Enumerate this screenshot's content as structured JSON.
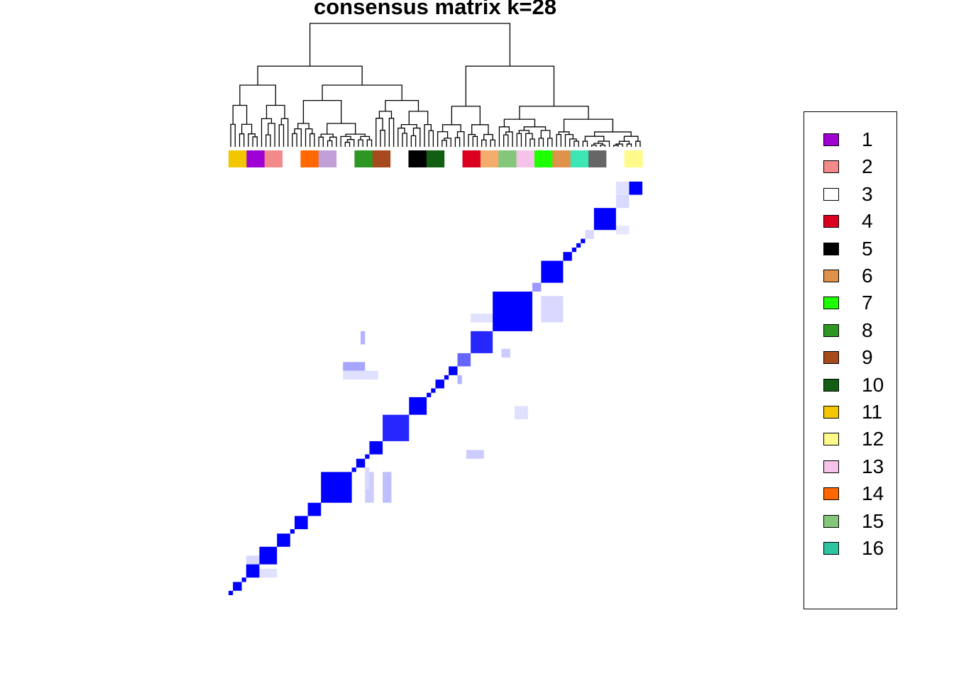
{
  "chart_data": {
    "type": "heatmap",
    "title": "consensus matrix k=28",
    "colorscale": [
      "#ffffff",
      "#0000ff"
    ],
    "value_range": [
      0,
      1
    ],
    "samples_per_block": "mixed",
    "clusters_in_column_order": [
      11,
      1,
      2,
      0,
      14,
      18,
      0,
      8,
      9,
      0,
      5,
      10,
      0,
      4,
      19,
      15,
      13,
      7,
      6,
      20,
      23,
      0,
      12
    ],
    "diagonal_blocks_bottom_left_to_top_right": [
      {
        "span": [
          0,
          1
        ],
        "value": 1.0
      },
      {
        "span": [
          1,
          3
        ],
        "value": 1.0
      },
      {
        "span": [
          3,
          4
        ],
        "value": 1.0
      },
      {
        "span": [
          4,
          7
        ],
        "value": 1.0
      },
      {
        "span": [
          7,
          11
        ],
        "value": 1.0
      },
      {
        "span": [
          11,
          14
        ],
        "value": 1.0
      },
      {
        "span": [
          14,
          15
        ],
        "value": 1.0
      },
      {
        "span": [
          15,
          18
        ],
        "value": 1.0
      },
      {
        "span": [
          18,
          21
        ],
        "value": 1.0
      },
      {
        "span": [
          21,
          28
        ],
        "value": 1.0
      },
      {
        "span": [
          28,
          29
        ],
        "value": 1.0
      },
      {
        "span": [
          29,
          31
        ],
        "value": 1.0
      },
      {
        "span": [
          31,
          32
        ],
        "value": 1.0
      },
      {
        "span": [
          32,
          35
        ],
        "value": 1.0
      },
      {
        "span": [
          35,
          41
        ],
        "value": 0.85
      },
      {
        "span": [
          41,
          45
        ],
        "value": 1.0
      },
      {
        "span": [
          45,
          46
        ],
        "value": 1.0
      },
      {
        "span": [
          46,
          47
        ],
        "value": 1.0
      },
      {
        "span": [
          47,
          49
        ],
        "value": 1.0
      },
      {
        "span": [
          49,
          50
        ],
        "value": 1.0
      },
      {
        "span": [
          50,
          52
        ],
        "value": 1.0
      },
      {
        "span": [
          52,
          55
        ],
        "value": 0.6
      },
      {
        "span": [
          55,
          60
        ],
        "value": 0.85
      },
      {
        "span": [
          60,
          69
        ],
        "value": 1.0
      },
      {
        "span": [
          69,
          71
        ],
        "value": 0.4
      },
      {
        "span": [
          71,
          76
        ],
        "value": 1.0
      },
      {
        "span": [
          76,
          78
        ],
        "value": 1.0
      },
      {
        "span": [
          78,
          79
        ],
        "value": 1.0
      },
      {
        "span": [
          79,
          80
        ],
        "value": 1.0
      },
      {
        "span": [
          80,
          81
        ],
        "value": 1.0
      },
      {
        "span": [
          81,
          83
        ],
        "value": 0.15
      },
      {
        "span": [
          83,
          88
        ],
        "value": 1.0
      },
      {
        "span": [
          88,
          91
        ],
        "value": 0.15
      },
      {
        "span": [
          91,
          94
        ],
        "value": 1.0
      }
    ],
    "off_diagonal_cells": [
      {
        "rows": [
          62,
          68
        ],
        "cols": [
          71,
          76
        ],
        "value": 0.15
      },
      {
        "rows": [
          62,
          64
        ],
        "cols": [
          55,
          68
        ],
        "value": 0.12
      },
      {
        "rows": [
          51,
          53
        ],
        "cols": [
          26,
          31
        ],
        "value": 0.35
      },
      {
        "rows": [
          49,
          51
        ],
        "cols": [
          26,
          34
        ],
        "value": 0.12
      },
      {
        "rows": [
          21,
          28
        ],
        "cols": [
          31,
          33
        ],
        "value": 0.2
      },
      {
        "rows": [
          21,
          28
        ],
        "cols": [
          35,
          37
        ],
        "value": 0.25
      },
      {
        "rows": [
          24,
          29
        ],
        "cols": [
          31,
          32
        ],
        "value": 0.15
      },
      {
        "rows": [
          6,
          9
        ],
        "cols": [
          4,
          7
        ],
        "value": 0.15
      },
      {
        "rows": [
          8,
          10
        ],
        "cols": [
          7,
          10
        ],
        "value": 0.15
      },
      {
        "rows": [
          4,
          6
        ],
        "cols": [
          7,
          11
        ],
        "value": 0.12
      },
      {
        "rows": [
          91,
          94
        ],
        "cols": [
          88,
          91
        ],
        "value": 0.12
      },
      {
        "rows": [
          82,
          84
        ],
        "cols": [
          88,
          91
        ],
        "value": 0.1
      },
      {
        "rows": [
          57,
          60
        ],
        "cols": [
          30,
          31
        ],
        "value": 0.3
      },
      {
        "rows": [
          54,
          56
        ],
        "cols": [
          62,
          64
        ],
        "value": 0.2
      },
      {
        "rows": [
          48,
          50
        ],
        "cols": [
          52,
          53
        ],
        "value": 0.3
      },
      {
        "rows": [
          40,
          43
        ],
        "cols": [
          65,
          68
        ],
        "value": 0.12
      },
      {
        "rows": [
          31,
          33
        ],
        "cols": [
          54,
          58
        ],
        "value": 0.2
      }
    ],
    "column_annotation_colors": {
      "0": "#ffffff",
      "1": "#9f00d4",
      "2": "#f28a8a",
      "4": "#dc0020",
      "5": "#000000",
      "6": "#e0914a",
      "7": "#1eff00",
      "8": "#2e9723",
      "9": "#a6491c",
      "10": "#125f14",
      "11": "#f2c700",
      "12": "#fffa8a",
      "13": "#f5c3ea",
      "14": "#ff6700",
      "15": "#84c77a",
      "18": "#c0a0d6",
      "19": "#f4ac6c",
      "20": "#3ee6b4",
      "23": "#666666"
    },
    "dendrogram": "hierarchical clustering of 94 samples",
    "legend": {
      "position": "right",
      "entries": [
        {
          "label": "1",
          "color": "#9f00d4"
        },
        {
          "label": "2",
          "color": "#f28a8a"
        },
        {
          "label": "3",
          "color": "#ffffff"
        },
        {
          "label": "4",
          "color": "#dc0020"
        },
        {
          "label": "5",
          "color": "#000000"
        },
        {
          "label": "6",
          "color": "#e0914a"
        },
        {
          "label": "7",
          "color": "#1eff00"
        },
        {
          "label": "8",
          "color": "#2e9723"
        },
        {
          "label": "9",
          "color": "#a6491c"
        },
        {
          "label": "10",
          "color": "#125f14"
        },
        {
          "label": "11",
          "color": "#f2c700"
        },
        {
          "label": "12",
          "color": "#fffa8a"
        },
        {
          "label": "13",
          "color": "#f5c3ea"
        },
        {
          "label": "14",
          "color": "#ff6700"
        },
        {
          "label": "15",
          "color": "#84c77a"
        },
        {
          "label": "16",
          "color": "#2ec4a0"
        }
      ]
    }
  }
}
